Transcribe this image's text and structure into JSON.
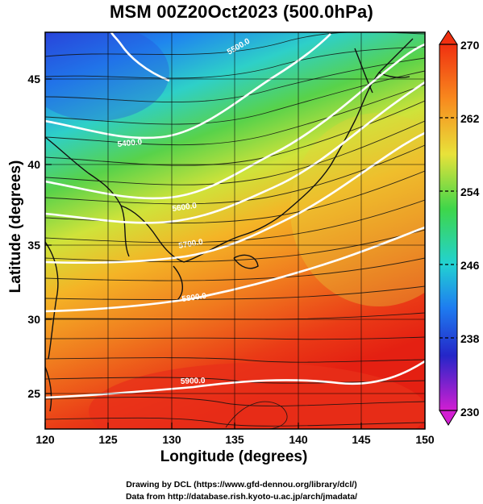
{
  "title": "MSM 00Z20Oct2023 (500.0hPa)",
  "x_axis": {
    "label": "Longitude (degrees)",
    "ticks": [
      "120",
      "125",
      "130",
      "135",
      "140",
      "145",
      "150"
    ]
  },
  "y_axis": {
    "label": "Latitude  (degrees)",
    "ticks": [
      "25",
      "30",
      "35",
      "40",
      "45"
    ]
  },
  "colorbar": {
    "ticks": [
      "270",
      "262",
      "254",
      "246",
      "238",
      "230"
    ],
    "min": 230,
    "max": 270
  },
  "contours": [
    {
      "label": "5400.0"
    },
    {
      "label": "5500.0"
    },
    {
      "label": "5600.0"
    },
    {
      "label": "5700.0"
    },
    {
      "label": "5800.0"
    },
    {
      "label": "5900.0"
    }
  ],
  "footer": {
    "line1": "Drawing by DCL (https://www.gfd-dennou.org/library/dcl/)",
    "line2": "Data from http://database.rish.kyoto-u.ac.jp/arch/jmadata/"
  }
}
